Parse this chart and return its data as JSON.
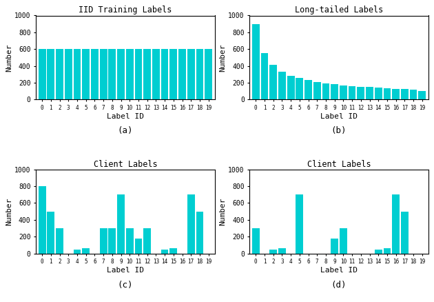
{
  "iid_values": [
    600,
    600,
    600,
    600,
    600,
    600,
    600,
    600,
    600,
    600,
    600,
    600,
    600,
    600,
    600,
    600,
    600,
    600,
    600,
    600
  ],
  "longtail_values": [
    900,
    550,
    415,
    335,
    285,
    255,
    230,
    210,
    195,
    185,
    170,
    160,
    150,
    148,
    143,
    138,
    130,
    125,
    115,
    105
  ],
  "client_c_values": [
    800,
    500,
    300,
    0,
    50,
    65,
    0,
    300,
    300,
    700,
    300,
    175,
    300,
    0,
    50,
    65,
    0,
    700,
    500,
    0
  ],
  "client_d_values": [
    300,
    0,
    50,
    65,
    0,
    700,
    0,
    0,
    0,
    175,
    300,
    0,
    0,
    0,
    50,
    65,
    700,
    500,
    0,
    0
  ],
  "bar_color": "#00CED1",
  "title_a": "IID Training Labels",
  "title_b": "Long-tailed Labels",
  "title_c": "Client Labels",
  "title_d": "Client Labels",
  "xlabel": "Label ID",
  "ylabel": "Number",
  "caption_a": "(a)",
  "caption_b": "(b)",
  "caption_c": "(c)",
  "caption_d": "(d)",
  "ylim": [
    0,
    1000
  ],
  "yticks": [
    0,
    200,
    400,
    600,
    800,
    1000
  ],
  "xtick_labels": [
    "0",
    "1",
    "2",
    "3",
    "4",
    "5",
    "6",
    "7",
    "8",
    "9",
    "10",
    "11",
    "12",
    "13",
    "14",
    "15",
    "16",
    "17",
    "18",
    "19"
  ]
}
